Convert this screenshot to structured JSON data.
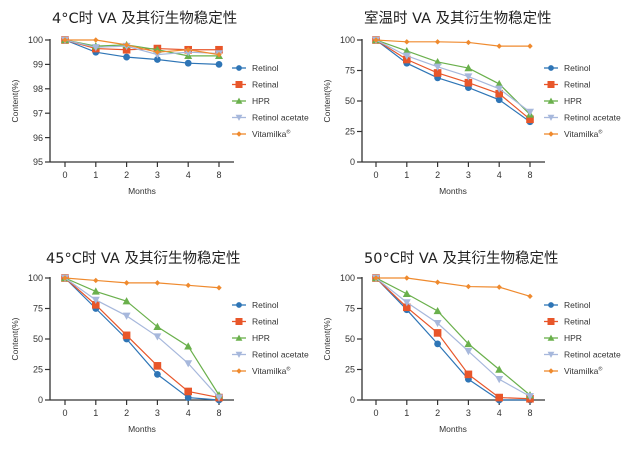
{
  "series_styles": [
    {
      "name": "Retinol",
      "color": "#2e75b6",
      "marker": "circle"
    },
    {
      "name": "Retinal",
      "color": "#e8562a",
      "marker": "square"
    },
    {
      "name": "HPR",
      "color": "#6ab04c",
      "marker": "triangle-up"
    },
    {
      "name": "Retinol acetate",
      "color": "#a7b8dc",
      "marker": "triangle-down"
    },
    {
      "name": "Vitamilka",
      "name_sup": "®",
      "color": "#ef8a2e",
      "marker": "diamond"
    }
  ],
  "chart_data": [
    {
      "type": "line",
      "title": "4°C时 VA 及其衍生物稳定性",
      "xlabel": "Months",
      "ylabel": "Content(%)",
      "categories": [
        "0",
        "1",
        "2",
        "3",
        "4",
        "8"
      ],
      "ylim": [
        95,
        100
      ],
      "yticks": [
        95,
        96,
        97,
        98,
        99,
        100
      ],
      "legend": "right",
      "grid": false,
      "series": [
        {
          "name": "Retinol",
          "values": [
            100,
            99.5,
            99.3,
            99.2,
            99.05,
            99.0
          ]
        },
        {
          "name": "Retinal",
          "values": [
            100,
            99.65,
            99.6,
            99.65,
            99.6,
            99.6
          ]
        },
        {
          "name": "HPR",
          "values": [
            100,
            99.75,
            99.8,
            99.6,
            99.35,
            99.35
          ]
        },
        {
          "name": "Retinol acetate",
          "values": [
            100,
            99.7,
            99.75,
            99.4,
            99.5,
            99.45
          ]
        },
        {
          "name": "Vitamilka®",
          "values": [
            100,
            100,
            99.8,
            99.5,
            99.6,
            99.4
          ]
        }
      ]
    },
    {
      "type": "line",
      "title": "室温时 VA 及其衍生物稳定性",
      "xlabel": "Months",
      "ylabel": "Content(%)",
      "categories": [
        "0",
        "1",
        "2",
        "3",
        "4",
        "8"
      ],
      "ylim": [
        0,
        100
      ],
      "yticks": [
        0,
        25,
        50,
        75,
        100
      ],
      "legend": "right",
      "grid": false,
      "series": [
        {
          "name": "Retinol",
          "values": [
            100,
            81,
            69,
            61,
            51,
            33
          ]
        },
        {
          "name": "Retinal",
          "values": [
            100,
            84,
            73,
            65,
            56,
            35
          ]
        },
        {
          "name": "HPR",
          "values": [
            100,
            91,
            82,
            77,
            64,
            39
          ]
        },
        {
          "name": "Retinol acetate",
          "values": [
            100,
            87,
            78,
            70,
            60,
            41
          ]
        },
        {
          "name": "Vitamilka®",
          "values": [
            100,
            98.5,
            98.5,
            98,
            95,
            95
          ]
        }
      ]
    },
    {
      "type": "line",
      "title": "45°C时 VA 及其衍生物稳定性",
      "xlabel": "Months",
      "ylabel": "Content(%)",
      "categories": [
        "0",
        "1",
        "2",
        "3",
        "4",
        "8"
      ],
      "ylim": [
        0,
        100
      ],
      "yticks": [
        0,
        25,
        50,
        75,
        100
      ],
      "legend": "right",
      "grid": false,
      "series": [
        {
          "name": "Retinol",
          "values": [
            100,
            75,
            50,
            21,
            2,
            0
          ]
        },
        {
          "name": "Retinal",
          "values": [
            100,
            78,
            53,
            28,
            7,
            2
          ]
        },
        {
          "name": "HPR",
          "values": [
            100,
            89,
            81,
            60,
            44,
            4
          ]
        },
        {
          "name": "Retinol acetate",
          "values": [
            100,
            82,
            69,
            52,
            30,
            2
          ]
        },
        {
          "name": "Vitamilka®",
          "values": [
            100,
            98,
            96,
            96,
            94,
            92
          ]
        }
      ]
    },
    {
      "type": "line",
      "title": "50°C时 VA 及其衍生物稳定性",
      "xlabel": "Months",
      "ylabel": "Content(%)",
      "categories": [
        "0",
        "1",
        "2",
        "3",
        "4",
        "8"
      ],
      "ylim": [
        0,
        100
      ],
      "yticks": [
        0,
        25,
        50,
        75,
        100
      ],
      "legend": "right",
      "grid": false,
      "series": [
        {
          "name": "Retinol",
          "values": [
            100,
            74,
            46,
            17,
            0,
            0
          ]
        },
        {
          "name": "Retinal",
          "values": [
            100,
            76,
            55,
            21,
            2,
            1
          ]
        },
        {
          "name": "HPR",
          "values": [
            100,
            87,
            73,
            46,
            25,
            4
          ]
        },
        {
          "name": "Retinol acetate",
          "values": [
            100,
            80,
            63,
            40,
            17,
            3
          ]
        },
        {
          "name": "Vitamilka®",
          "values": [
            100,
            100,
            96.5,
            93,
            92.5,
            85
          ]
        }
      ]
    }
  ]
}
